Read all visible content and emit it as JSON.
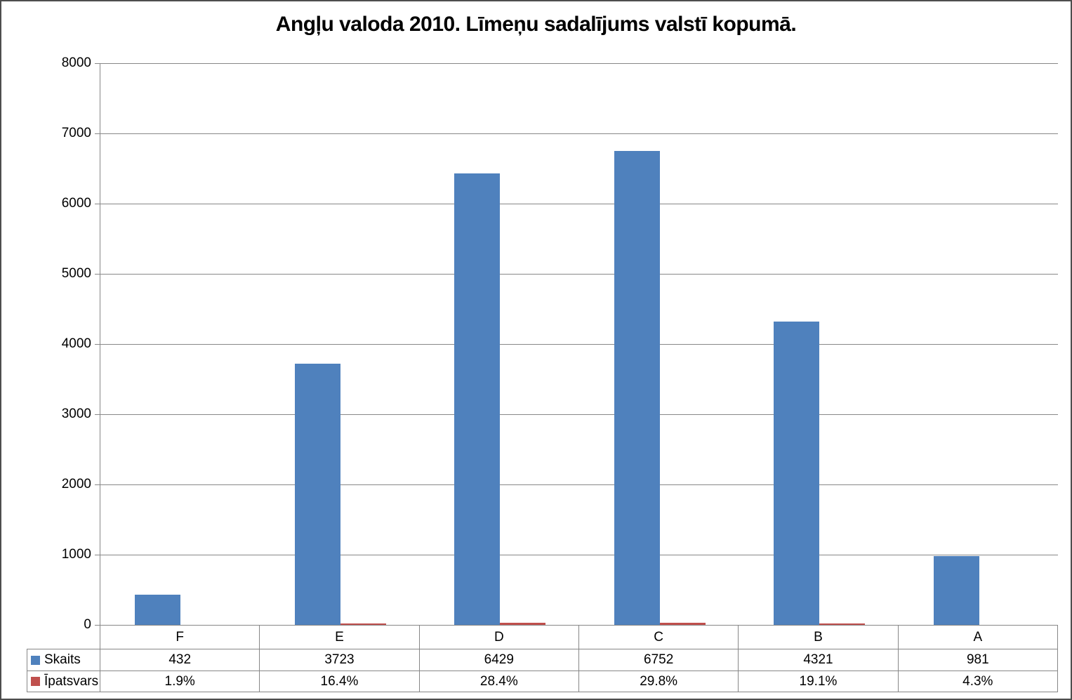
{
  "title": "Angļu valoda 2010. Līmeņu sadalījums valstī kopumā.",
  "colors": {
    "bar_blue": "#4f81bd",
    "legend_red": "#c0504d",
    "gridline_gray": "#878787"
  },
  "chart_data": {
    "type": "bar",
    "title": "Angļu valoda 2010. Līmeņu sadalījums valstī kopumā.",
    "categories": [
      "F",
      "E",
      "D",
      "C",
      "B",
      "A"
    ],
    "series": [
      {
        "name": "Skaits",
        "color": "#4f81bd",
        "values": [
          432,
          3723,
          6429,
          6752,
          4321,
          981
        ]
      },
      {
        "name": "Īpatsvars",
        "color": "#c0504d",
        "values": [
          1.9,
          16.4,
          28.4,
          29.8,
          19.1,
          4.3
        ],
        "display": [
          "1.9%",
          "16.4%",
          "28.4%",
          "29.8%",
          "19.1%",
          "4.3%"
        ]
      }
    ],
    "xlabel": "",
    "ylabel": "",
    "ylim": [
      0,
      8000
    ],
    "yticks": [
      0,
      1000,
      2000,
      3000,
      4000,
      5000,
      6000,
      7000,
      8000
    ],
    "grid": true,
    "legend_position": "data-table-below-axis"
  }
}
